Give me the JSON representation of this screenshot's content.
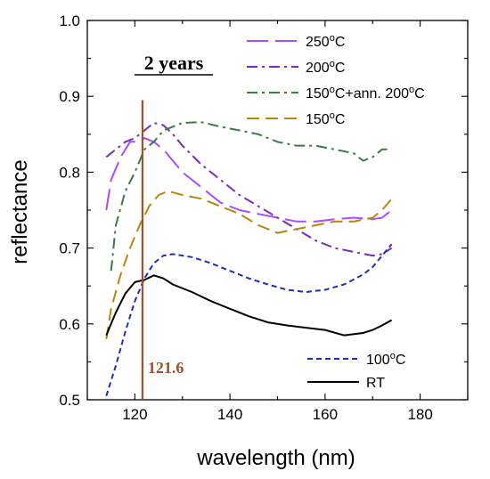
{
  "chart_data": {
    "type": "line",
    "xlabel": "wavelength (nm)",
    "ylabel": "reflectance",
    "xlim": [
      110,
      190
    ],
    "ylim": [
      0.5,
      1.0
    ],
    "xticks": [
      120,
      140,
      160,
      180
    ],
    "yticks": [
      0.5,
      0.6,
      0.7,
      0.8,
      0.9,
      1.0
    ],
    "xtick_labels": [
      "120",
      "140",
      "160",
      "180"
    ],
    "ytick_labels": [
      "0.5",
      "0.6",
      "0.7",
      "0.8",
      "0.9",
      "1.0"
    ],
    "annotations": {
      "title": "2 years",
      "marker_label": "121.6",
      "marker_x": 121.6,
      "marker_color": "#a0522d"
    },
    "series": [
      {
        "name": "250°C",
        "legend_main": "250",
        "legend_sup": "o",
        "legend_tail": "C",
        "color": "#a64dff",
        "dash": "24,8",
        "legend_group": "top",
        "points": [
          [
            114,
            0.75
          ],
          [
            115,
            0.79
          ],
          [
            117,
            0.82
          ],
          [
            119,
            0.84
          ],
          [
            121,
            0.84
          ],
          [
            122,
            0.845
          ],
          [
            124,
            0.84
          ],
          [
            126,
            0.83
          ],
          [
            128,
            0.815
          ],
          [
            130,
            0.8
          ],
          [
            134,
            0.78
          ],
          [
            138,
            0.76
          ],
          [
            142,
            0.75
          ],
          [
            146,
            0.745
          ],
          [
            150,
            0.74
          ],
          [
            154,
            0.735
          ],
          [
            158,
            0.735
          ],
          [
            162,
            0.738
          ],
          [
            166,
            0.74
          ],
          [
            170,
            0.738
          ],
          [
            172,
            0.74
          ],
          [
            174,
            0.75
          ]
        ]
      },
      {
        "name": "200°C",
        "legend_main": "200",
        "legend_sup": "o",
        "legend_tail": "C",
        "color": "#7a2bbf",
        "dash": "12,5,3,5",
        "legend_group": "top",
        "points": [
          [
            114,
            0.82
          ],
          [
            116,
            0.83
          ],
          [
            118,
            0.84
          ],
          [
            120,
            0.845
          ],
          [
            122,
            0.855
          ],
          [
            124,
            0.865
          ],
          [
            126,
            0.862
          ],
          [
            128,
            0.85
          ],
          [
            130,
            0.835
          ],
          [
            134,
            0.81
          ],
          [
            138,
            0.79
          ],
          [
            142,
            0.77
          ],
          [
            146,
            0.755
          ],
          [
            150,
            0.74
          ],
          [
            154,
            0.725
          ],
          [
            158,
            0.71
          ],
          [
            162,
            0.7
          ],
          [
            166,
            0.695
          ],
          [
            170,
            0.69
          ],
          [
            172,
            0.692
          ],
          [
            174,
            0.7
          ]
        ]
      },
      {
        "name": "150°C+ann. 200°C",
        "legend_main": "150",
        "legend_sup": "o",
        "legend_tail": "C+ann. 200",
        "legend_sup2": "o",
        "legend_tail2": "C",
        "color": "#3d7a4a",
        "dash": "12,5,3,5",
        "legend_group": "top",
        "points": [
          [
            115,
            0.67
          ],
          [
            116,
            0.73
          ],
          [
            118,
            0.775
          ],
          [
            120,
            0.8
          ],
          [
            122,
            0.83
          ],
          [
            124,
            0.84
          ],
          [
            126,
            0.855
          ],
          [
            128,
            0.86
          ],
          [
            130,
            0.865
          ],
          [
            134,
            0.866
          ],
          [
            138,
            0.86
          ],
          [
            142,
            0.855
          ],
          [
            146,
            0.85
          ],
          [
            150,
            0.84
          ],
          [
            154,
            0.835
          ],
          [
            158,
            0.835
          ],
          [
            162,
            0.83
          ],
          [
            166,
            0.825
          ],
          [
            168,
            0.815
          ],
          [
            170,
            0.82
          ],
          [
            172,
            0.83
          ],
          [
            174,
            0.83
          ]
        ]
      },
      {
        "name": "150°C",
        "legend_main": "150",
        "legend_sup": "o",
        "legend_tail": "C",
        "color": "#b8860b",
        "dash": "14,7",
        "legend_group": "top",
        "points": [
          [
            114,
            0.58
          ],
          [
            115,
            0.62
          ],
          [
            117,
            0.665
          ],
          [
            119,
            0.7
          ],
          [
            121,
            0.73
          ],
          [
            123,
            0.755
          ],
          [
            125,
            0.77
          ],
          [
            127,
            0.775
          ],
          [
            130,
            0.77
          ],
          [
            134,
            0.765
          ],
          [
            138,
            0.755
          ],
          [
            142,
            0.745
          ],
          [
            146,
            0.73
          ],
          [
            150,
            0.72
          ],
          [
            154,
            0.725
          ],
          [
            158,
            0.73
          ],
          [
            162,
            0.735
          ],
          [
            166,
            0.735
          ],
          [
            170,
            0.74
          ],
          [
            172,
            0.75
          ],
          [
            174,
            0.765
          ]
        ]
      },
      {
        "name": "100°C",
        "legend_main": "100",
        "legend_sup": "o",
        "legend_tail": "C",
        "color": "#1f2fb8",
        "dash": "6,4",
        "legend_group": "bottom",
        "points": [
          [
            114,
            0.505
          ],
          [
            116,
            0.545
          ],
          [
            118,
            0.59
          ],
          [
            120,
            0.63
          ],
          [
            122,
            0.66
          ],
          [
            124,
            0.68
          ],
          [
            126,
            0.69
          ],
          [
            128,
            0.692
          ],
          [
            132,
            0.688
          ],
          [
            136,
            0.68
          ],
          [
            140,
            0.67
          ],
          [
            144,
            0.66
          ],
          [
            148,
            0.652
          ],
          [
            152,
            0.645
          ],
          [
            156,
            0.642
          ],
          [
            160,
            0.645
          ],
          [
            164,
            0.652
          ],
          [
            168,
            0.665
          ],
          [
            170,
            0.675
          ],
          [
            172,
            0.69
          ],
          [
            174,
            0.705
          ]
        ]
      },
      {
        "name": "RT",
        "legend_main": "RT",
        "legend_sup": "",
        "legend_tail": "",
        "color": "#000000",
        "dash": "",
        "legend_group": "bottom",
        "points": [
          [
            114,
            0.585
          ],
          [
            116,
            0.615
          ],
          [
            118,
            0.64
          ],
          [
            120,
            0.655
          ],
          [
            122,
            0.658
          ],
          [
            124,
            0.664
          ],
          [
            126,
            0.66
          ],
          [
            128,
            0.652
          ],
          [
            132,
            0.642
          ],
          [
            136,
            0.63
          ],
          [
            140,
            0.62
          ],
          [
            144,
            0.61
          ],
          [
            148,
            0.602
          ],
          [
            152,
            0.598
          ],
          [
            156,
            0.595
          ],
          [
            160,
            0.592
          ],
          [
            164,
            0.585
          ],
          [
            168,
            0.588
          ],
          [
            170,
            0.592
          ],
          [
            172,
            0.598
          ],
          [
            174,
            0.605
          ]
        ]
      }
    ]
  }
}
